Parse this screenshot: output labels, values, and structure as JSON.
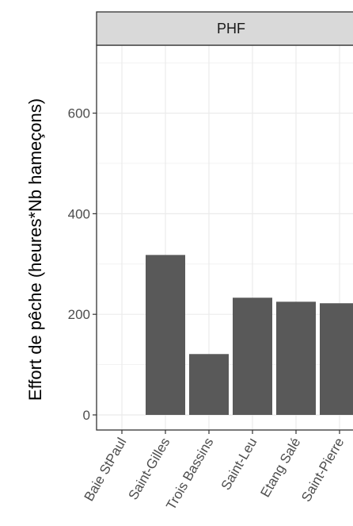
{
  "chart_data": {
    "type": "bar",
    "panel": "PHF",
    "ylabel": "Effort de pêche (heures*Nb hameçons)",
    "xlabel": "",
    "categories": [
      "Baie StPaul",
      "Saint-Gilles",
      "Trois Bassins",
      "Saint-Leu",
      "Etang Salé",
      "Saint-Pierre"
    ],
    "values": [
      0,
      318,
      121,
      233,
      225,
      222
    ],
    "y_ticks": [
      0,
      200,
      400,
      600
    ],
    "ylim": [
      -30,
      735
    ],
    "grid": true,
    "bar_color": "#595959",
    "panel_background": "#ffffff",
    "strip_background": "#d9d9d9",
    "grid_color": "#ebebeb",
    "frame_color": "#333333"
  }
}
